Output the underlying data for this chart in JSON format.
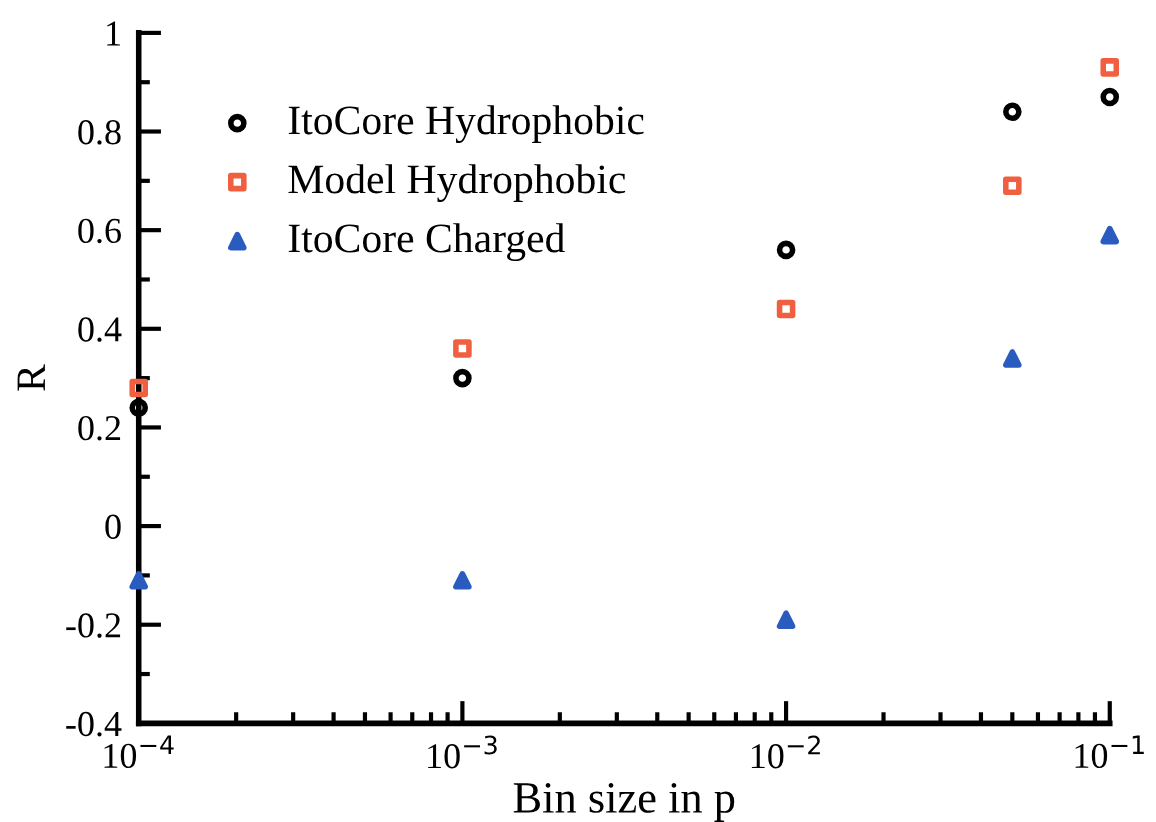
{
  "chart_data": {
    "type": "scatter",
    "xlabel": "Bin size in p",
    "ylabel": "R",
    "log": "x",
    "x": [
      0.0001,
      0.001,
      0.01,
      0.05,
      0.1
    ],
    "series": [
      {
        "name": "ItoCore Hydrophobic",
        "color": "#000000",
        "marker": "circle",
        "values": [
          0.24,
          0.3,
          0.56,
          0.84,
          0.87
        ]
      },
      {
        "name": "Model Hydrophobic",
        "color": "#f06040",
        "marker": "square",
        "values": [
          0.28,
          0.36,
          0.44,
          0.69,
          0.93
        ]
      },
      {
        "name": "ItoCore Charged",
        "color": "#2a5cc0",
        "marker": "triangle",
        "values": [
          -0.11,
          -0.11,
          -0.19,
          0.34,
          0.59
        ]
      }
    ],
    "xlim": [
      0.0001,
      0.1
    ],
    "xticks": [
      {
        "value": 0.0001,
        "label": "10$^{−4}$"
      },
      {
        "value": 0.001,
        "label": "10$^{−3}$"
      },
      {
        "value": 0.01,
        "label": "10$^{−2}$"
      },
      {
        "value": 0.1,
        "label": "10$^{−1}$"
      }
    ],
    "ylim": [
      -0.4,
      1
    ],
    "yticks": [
      -0.4,
      -0.2,
      0,
      0.2,
      0.4,
      0.6,
      0.8,
      1
    ],
    "grid": false,
    "legend": "top left"
  }
}
